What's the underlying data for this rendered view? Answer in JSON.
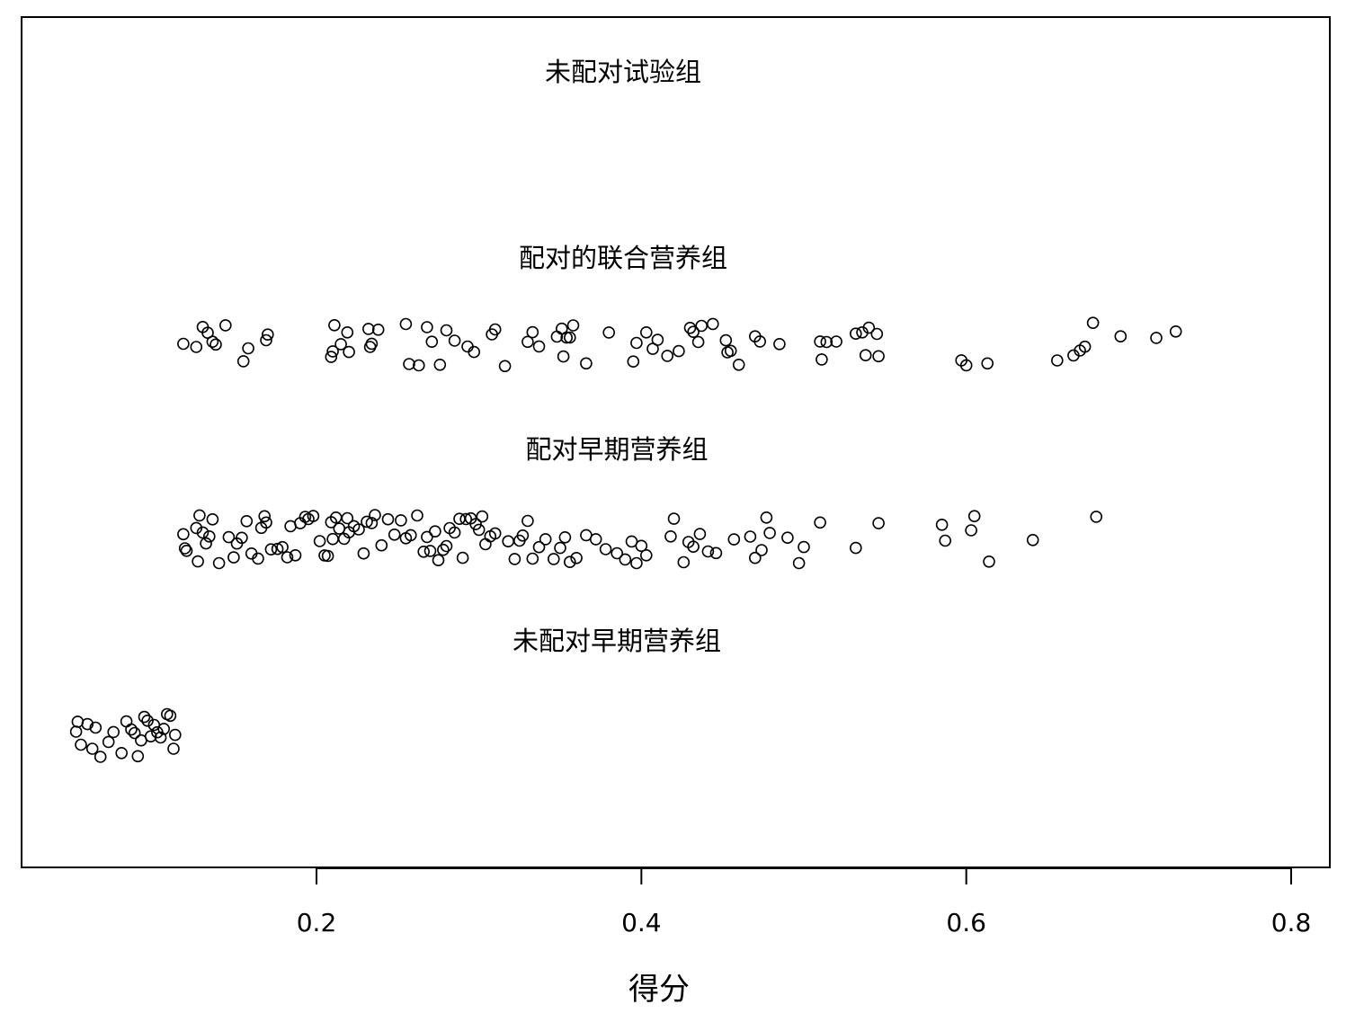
{
  "chart_data": {
    "type": "scatter",
    "subtype": "stripchart (jittered 1-D dot plot)",
    "xlabel": "得分",
    "ylabel": "",
    "xlim": [
      0.03,
      0.83
    ],
    "x_ticks": [
      0.2,
      0.4,
      0.6,
      0.8
    ],
    "x_tick_labels": [
      "0.2",
      "0.4",
      "0.6",
      "0.8"
    ],
    "grid": false,
    "legend": "none",
    "marker": "open-circle",
    "series": [
      {
        "name": "未配对试验组",
        "values": []
      },
      {
        "name": "配对的联合营养组",
        "values": [
          0.118,
          0.126,
          0.13,
          0.133,
          0.136,
          0.138,
          0.144,
          0.155,
          0.158,
          0.169,
          0.17,
          0.209,
          0.21,
          0.211,
          0.215,
          0.219,
          0.22,
          0.232,
          0.233,
          0.234,
          0.238,
          0.255,
          0.257,
          0.263,
          0.268,
          0.271,
          0.276,
          0.28,
          0.285,
          0.293,
          0.297,
          0.308,
          0.31,
          0.316,
          0.33,
          0.333,
          0.337,
          0.348,
          0.351,
          0.352,
          0.354,
          0.356,
          0.358,
          0.366,
          0.38,
          0.395,
          0.397,
          0.403,
          0.407,
          0.41,
          0.416,
          0.423,
          0.43,
          0.432,
          0.435,
          0.437,
          0.444,
          0.452,
          0.453,
          0.455,
          0.46,
          0.47,
          0.473,
          0.485,
          0.51,
          0.511,
          0.514,
          0.52,
          0.532,
          0.536,
          0.538,
          0.54,
          0.545,
          0.546,
          0.597,
          0.6,
          0.613,
          0.656,
          0.666,
          0.67,
          0.673,
          0.678,
          0.695,
          0.717,
          0.729
        ]
      },
      {
        "name": "配对早期营养组",
        "values": [
          0.118,
          0.119,
          0.12,
          0.126,
          0.127,
          0.128,
          0.13,
          0.132,
          0.134,
          0.136,
          0.14,
          0.146,
          0.149,
          0.151,
          0.154,
          0.157,
          0.16,
          0.164,
          0.166,
          0.168,
          0.169,
          0.172,
          0.176,
          0.179,
          0.182,
          0.184,
          0.187,
          0.19,
          0.193,
          0.195,
          0.198,
          0.202,
          0.205,
          0.207,
          0.209,
          0.21,
          0.212,
          0.214,
          0.217,
          0.219,
          0.22,
          0.223,
          0.226,
          0.229,
          0.231,
          0.234,
          0.236,
          0.24,
          0.244,
          0.248,
          0.252,
          0.255,
          0.258,
          0.262,
          0.266,
          0.268,
          0.27,
          0.273,
          0.275,
          0.278,
          0.28,
          0.282,
          0.285,
          0.288,
          0.29,
          0.292,
          0.295,
          0.298,
          0.3,
          0.302,
          0.304,
          0.307,
          0.31,
          0.318,
          0.322,
          0.325,
          0.327,
          0.33,
          0.333,
          0.337,
          0.341,
          0.346,
          0.35,
          0.353,
          0.356,
          0.36,
          0.366,
          0.372,
          0.378,
          0.385,
          0.39,
          0.394,
          0.397,
          0.4,
          0.403,
          0.418,
          0.42,
          0.426,
          0.429,
          0.432,
          0.436,
          0.441,
          0.446,
          0.457,
          0.467,
          0.47,
          0.474,
          0.477,
          0.479,
          0.49,
          0.497,
          0.5,
          0.51,
          0.532,
          0.546,
          0.585,
          0.587,
          0.603,
          0.605,
          0.614,
          0.641,
          0.68
        ]
      },
      {
        "name": "未配对早期营养组",
        "values": [
          0.052,
          0.053,
          0.055,
          0.059,
          0.062,
          0.064,
          0.067,
          0.072,
          0.075,
          0.08,
          0.083,
          0.086,
          0.088,
          0.09,
          0.092,
          0.094,
          0.096,
          0.098,
          0.1,
          0.102,
          0.104,
          0.106,
          0.108,
          0.11,
          0.112,
          0.113
        ]
      }
    ]
  }
}
